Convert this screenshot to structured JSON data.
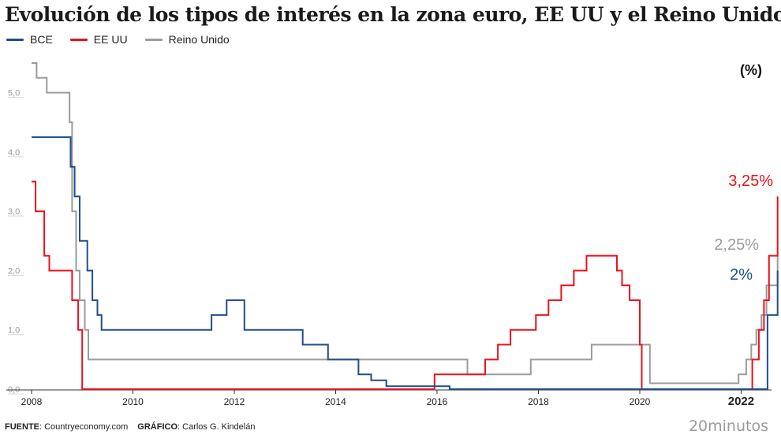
{
  "title": "Evolución de los tipos de interés en la zona euro, EE UU y el Reino Unido",
  "footer": {
    "source_label": "FUENTE",
    "source_value": ": Countryeconomy.com",
    "graphic_label": "GRÁFICO",
    "graphic_value": ": Carlos G. Kindelán"
  },
  "brand": "20minutos",
  "chart_data": {
    "type": "line",
    "title": "Evolución de los tipos de interés en la zona euro, EE UU y el Reino Unido",
    "unit_label": "(%)",
    "xlim": [
      2008.0,
      2022.6
    ],
    "ylim": [
      0,
      5.5
    ],
    "x_ticks": [
      {
        "value": 2008,
        "label": "2008",
        "bold": false
      },
      {
        "value": 2010,
        "label": "2010",
        "bold": false
      },
      {
        "value": 2012,
        "label": "2012",
        "bold": false
      },
      {
        "value": 2014,
        "label": "2014",
        "bold": false
      },
      {
        "value": 2016,
        "label": "2016",
        "bold": false
      },
      {
        "value": 2018,
        "label": "2018",
        "bold": false
      },
      {
        "value": 2020,
        "label": "2020",
        "bold": false
      },
      {
        "value": 2022,
        "label": "2022",
        "bold": true
      }
    ],
    "y_ticks": [
      {
        "value": 0,
        "label": "0,0"
      },
      {
        "value": 1,
        "label": "1,0"
      },
      {
        "value": 2,
        "label": "2,0"
      },
      {
        "value": 3,
        "label": "3,0"
      },
      {
        "value": 4,
        "label": "4,0"
      },
      {
        "value": 5,
        "label": "5,0"
      }
    ],
    "grid": false,
    "legend_position": "top-left",
    "series": [
      {
        "name": "BCE",
        "color": "#1f4e8c",
        "end_label": "2%",
        "x": [
          2008.0,
          2008.7,
          2008.77,
          2008.85,
          2008.95,
          2009.1,
          2009.2,
          2009.3,
          2009.38,
          2011.3,
          2011.55,
          2011.85,
          2012.2,
          2013.35,
          2013.85,
          2014.45,
          2014.7,
          2015.0,
          2016.25,
          2022.52,
          2022.72
        ],
        "y": [
          4.25,
          4.25,
          3.75,
          3.25,
          2.5,
          2.0,
          1.5,
          1.25,
          1.0,
          1.0,
          1.25,
          1.5,
          1.0,
          0.75,
          0.5,
          0.25,
          0.15,
          0.05,
          0.0,
          1.25,
          2.0
        ]
      },
      {
        "name": "EE UU",
        "color": "#e8131c",
        "end_label": "3,25%",
        "x": [
          2008.0,
          2008.08,
          2008.25,
          2008.35,
          2008.8,
          2008.92,
          2009.0,
          2015.95,
          2016.95,
          2017.2,
          2017.45,
          2017.95,
          2018.2,
          2018.45,
          2018.7,
          2018.95,
          2019.55,
          2019.65,
          2019.8,
          2020.0,
          2020.04,
          2022.22,
          2022.35,
          2022.45,
          2022.55,
          2022.72
        ],
        "y": [
          3.5,
          3.0,
          2.25,
          2.0,
          1.5,
          1.0,
          0.0,
          0.25,
          0.5,
          0.75,
          1.0,
          1.25,
          1.5,
          1.75,
          2.0,
          2.25,
          2.0,
          1.75,
          1.5,
          0.75,
          0.0,
          0.5,
          1.0,
          1.5,
          2.25,
          3.25
        ]
      },
      {
        "name": "Reino Unido",
        "color": "#9b9b9b",
        "end_label": "2,25%",
        "x": [
          2008.0,
          2008.1,
          2008.3,
          2008.75,
          2008.8,
          2008.88,
          2008.95,
          2009.05,
          2009.12,
          2016.6,
          2017.85,
          2019.05,
          2020.2,
          2021.95,
          2022.1,
          2022.2,
          2022.3,
          2022.4,
          2022.5,
          2022.72
        ],
        "y": [
          5.5,
          5.25,
          5.0,
          4.5,
          3.0,
          2.0,
          1.5,
          1.0,
          0.5,
          0.25,
          0.5,
          0.75,
          0.1,
          0.25,
          0.5,
          0.75,
          1.0,
          1.25,
          1.75,
          2.25
        ]
      }
    ]
  }
}
